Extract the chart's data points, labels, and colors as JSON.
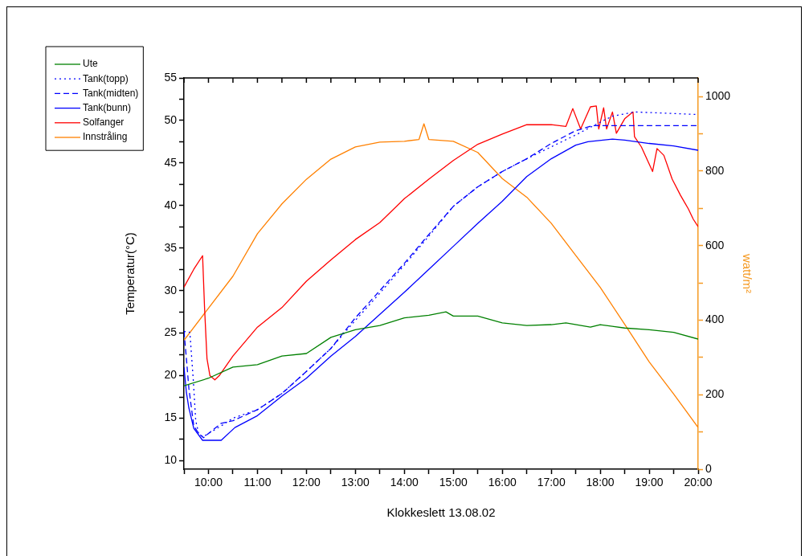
{
  "chart_data": {
    "type": "line",
    "xlabel": "Klokkeslett 13.08.02",
    "ylabel": "Temperatur(°C)",
    "y2label": "watt/m²",
    "xlim": [
      9.5,
      20
    ],
    "xticks": [
      {
        "value": 9.5,
        "label": null
      },
      {
        "value": 10,
        "label": "10:00"
      },
      {
        "value": 10.5,
        "label": null
      },
      {
        "value": 11,
        "label": "11:00"
      },
      {
        "value": 11.5,
        "label": null
      },
      {
        "value": 12,
        "label": "12:00"
      },
      {
        "value": 12.5,
        "label": null
      },
      {
        "value": 13,
        "label": "13:00"
      },
      {
        "value": 13.5,
        "label": null
      },
      {
        "value": 14,
        "label": "14:00"
      },
      {
        "value": 14.5,
        "label": null
      },
      {
        "value": 15,
        "label": "15:00"
      },
      {
        "value": 15.5,
        "label": null
      },
      {
        "value": 16,
        "label": "16:00"
      },
      {
        "value": 16.5,
        "label": null
      },
      {
        "value": 17,
        "label": "17:00"
      },
      {
        "value": 17.5,
        "label": null
      },
      {
        "value": 18,
        "label": "18:00"
      },
      {
        "value": 18.5,
        "label": null
      },
      {
        "value": 19,
        "label": "19:00"
      },
      {
        "value": 19.5,
        "label": null
      },
      {
        "value": 20,
        "label": "20:00"
      }
    ],
    "ylim": [
      9,
      55
    ],
    "yticks": [
      10,
      {
        "value": 12.5,
        "label": null
      },
      15,
      {
        "value": 17.5,
        "label": null
      },
      20,
      {
        "value": 22.5,
        "label": null
      },
      25,
      {
        "value": 27.5,
        "label": null
      },
      30,
      {
        "value": 32.5,
        "label": null
      },
      35,
      {
        "value": 37.5,
        "label": null
      },
      40,
      {
        "value": 42.5,
        "label": null
      },
      45,
      {
        "value": 47.5,
        "label": null
      },
      50,
      {
        "value": 52.5,
        "label": null
      },
      55
    ],
    "y2lim": [
      0,
      1050
    ],
    "y2ticks": [
      0,
      {
        "value": 100,
        "label": null
      },
      200,
      {
        "value": 300,
        "label": null
      },
      400,
      {
        "value": 500,
        "label": null
      },
      600,
      {
        "value": 700,
        "label": null
      },
      800,
      {
        "value": 900,
        "label": null
      },
      1000
    ],
    "legend": "top left",
    "grid": false,
    "marker": "none",
    "series": [
      {
        "name": "Ute",
        "color": "#008000",
        "line_style": "solid",
        "x": [
          9.5,
          10,
          10.5,
          11,
          11.5,
          12,
          12.5,
          13,
          13.5,
          14,
          14.5,
          14.85,
          15,
          15.5,
          16,
          16.5,
          17,
          17.3,
          17.8,
          18,
          18.5,
          19,
          19.5,
          20
        ],
        "values": [
          18.8,
          19.7,
          21,
          21.3,
          22.3,
          22.6,
          24.5,
          25.4,
          25.9,
          26.8,
          27.1,
          27.5,
          27,
          27,
          26.2,
          25.9,
          26,
          26.2,
          25.7,
          26,
          25.6,
          25.4,
          25.1,
          24.3
        ]
      },
      {
        "name": "Tank(topp)",
        "color": "#0000ff",
        "line_style": "dotted",
        "x": [
          9.5,
          9.62,
          9.69,
          9.74,
          9.8,
          9.89,
          10,
          10.26,
          10.5,
          11,
          11.5,
          12,
          12.5,
          13,
          13.5,
          14,
          14.5,
          15,
          15.5,
          16,
          16.5,
          17,
          17.5,
          18,
          18.25,
          18.7,
          20
        ],
        "values": [
          25.2,
          25.1,
          19.5,
          14.7,
          13.2,
          12.8,
          13.2,
          14.1,
          15,
          16,
          17.9,
          20.5,
          23.2,
          26.5,
          29.7,
          33,
          36.4,
          39.9,
          42.2,
          44,
          45.5,
          46.9,
          48.3,
          49.8,
          50.5,
          51,
          50.7
        ]
      },
      {
        "name": "Tank(midten)",
        "color": "#0000ff",
        "line_style": "dashed",
        "x": [
          9.5,
          9.55,
          9.6,
          9.7,
          9.8,
          9.9,
          10,
          10.26,
          10.5,
          11,
          11.5,
          12,
          12.5,
          13,
          13.5,
          14,
          14.5,
          15,
          15.5,
          16,
          16.5,
          17,
          17.5,
          17.85,
          20
        ],
        "values": [
          25.2,
          22,
          18.5,
          14.1,
          13.2,
          12.7,
          13.2,
          14.4,
          14.7,
          16,
          17.9,
          20.5,
          23.2,
          26.8,
          30,
          33.2,
          36.6,
          39.9,
          42.2,
          44,
          45.5,
          47.3,
          48.8,
          49.4,
          49.4
        ]
      },
      {
        "name": "Tank(bunn)",
        "color": "#0000ff",
        "line_style": "solid",
        "x": [
          9.5,
          9.55,
          9.6,
          9.7,
          9.88,
          10.26,
          10.54,
          11,
          11.5,
          12,
          12.5,
          13,
          13.5,
          14,
          14.5,
          15,
          15.5,
          16,
          16.5,
          17,
          17.5,
          17.75,
          18.25,
          18.5,
          19,
          19.5,
          20
        ],
        "values": [
          21,
          18,
          16.2,
          13.8,
          12.4,
          12.4,
          13.9,
          15.3,
          17.6,
          19.7,
          22.3,
          24.6,
          27.2,
          29.8,
          32.5,
          35.2,
          37.9,
          40.5,
          43.4,
          45.5,
          47.1,
          47.5,
          47.8,
          47.7,
          47.3,
          47,
          46.5
        ]
      },
      {
        "name": "Solfanger",
        "color": "#ff0000",
        "line_style": "solid",
        "x": [
          9.5,
          9.7,
          9.88,
          9.92,
          9.97,
          10.03,
          10.13,
          10.22,
          10.5,
          11,
          11.5,
          12,
          12.5,
          13,
          13.5,
          14,
          14.5,
          15,
          15.5,
          16,
          16.5,
          17,
          17.3,
          17.44,
          17.6,
          17.8,
          17.92,
          17.97,
          18.07,
          18.13,
          18.25,
          18.33,
          18.5,
          18.67,
          18.7,
          18.84,
          19.07,
          19.16,
          19.3,
          19.47,
          19.64,
          19.8,
          19.9,
          20
        ],
        "values": [
          30.4,
          32.5,
          34.1,
          28,
          22,
          20,
          19.5,
          20,
          22.3,
          25.7,
          28,
          31.1,
          33.6,
          36,
          38,
          40.8,
          43.1,
          45.3,
          47.2,
          48.4,
          49.5,
          49.5,
          49.3,
          51.4,
          49,
          51.6,
          51.7,
          49,
          51.5,
          49,
          51,
          48.5,
          50.2,
          51,
          48.1,
          46.9,
          44,
          46.7,
          45.9,
          43.1,
          41.2,
          39.6,
          38.4,
          37.5
        ]
      },
      {
        "name": "Innstråling",
        "color": "#ff8000",
        "line_style": "solid",
        "axis": "y2",
        "x": [
          9.5,
          10,
          10.5,
          11,
          11.5,
          12,
          12.5,
          13,
          13.5,
          14,
          14.3,
          14.4,
          14.5,
          15,
          15.5,
          16,
          16.5,
          17,
          17.5,
          18,
          18.5,
          19,
          19.5,
          20
        ],
        "values": [
          346,
          432,
          518,
          632,
          712,
          778,
          832,
          865,
          878,
          880,
          885,
          927,
          885,
          880,
          850,
          780,
          730,
          660,
          574,
          488,
          389,
          288,
          202,
          112
        ]
      }
    ]
  }
}
